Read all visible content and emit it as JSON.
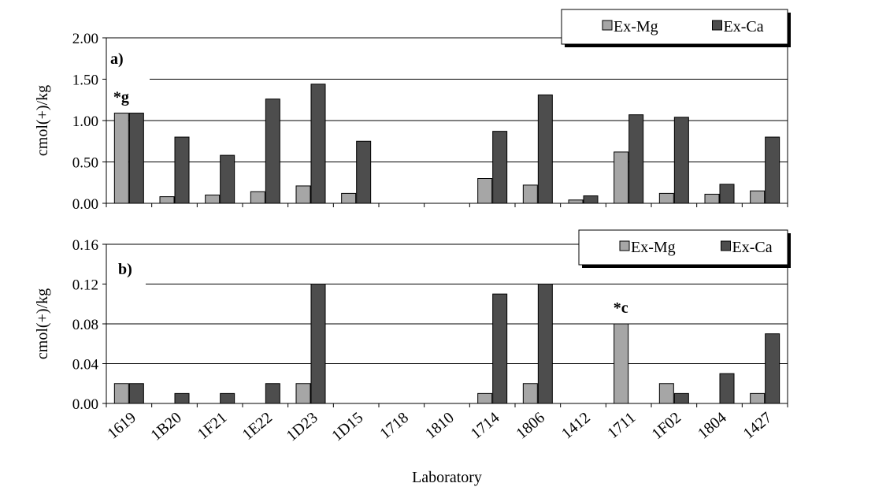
{
  "chart_data": [
    {
      "type": "bar",
      "panel_label": "a)",
      "ylabel": "cmol(+)/kg",
      "ylim": [
        0,
        2.0
      ],
      "yticks": [
        "0.00",
        "0.50",
        "1.00",
        "1.50",
        "2.00"
      ],
      "ytick_values": [
        0,
        0.5,
        1.0,
        1.5,
        2.0
      ],
      "grid": true,
      "legend": "top-right",
      "categories": [
        "1619",
        "1B20",
        "1F21",
        "1E22",
        "1D23",
        "1D15",
        "1718",
        "1810",
        "1714",
        "1806",
        "1412",
        "1711",
        "1F02",
        "1804",
        "1427"
      ],
      "series": [
        {
          "name": "Ex-Mg",
          "color": "#a6a6a6",
          "values": [
            1.09,
            0.08,
            0.1,
            0.14,
            0.21,
            0.12,
            null,
            null,
            0.3,
            0.22,
            0.04,
            0.62,
            0.12,
            0.11,
            0.15
          ]
        },
        {
          "name": "Ex-Ca",
          "color": "#4d4d4d",
          "values": [
            1.09,
            0.8,
            0.58,
            1.26,
            1.44,
            0.75,
            null,
            null,
            0.87,
            1.31,
            0.09,
            1.07,
            1.04,
            0.23,
            0.8
          ]
        }
      ],
      "annotations": [
        {
          "text": "*g",
          "category_index": 0
        }
      ]
    },
    {
      "type": "bar",
      "panel_label": "b)",
      "ylabel": "cmol(+)/kg",
      "xlabel": "Laboratory",
      "ylim": [
        0,
        0.16
      ],
      "yticks": [
        "0.00",
        "0.04",
        "0.08",
        "0.12",
        "0.16"
      ],
      "ytick_values": [
        0,
        0.04,
        0.08,
        0.12,
        0.16
      ],
      "grid": true,
      "legend": "top-right",
      "categories": [
        "1619",
        "1B20",
        "1F21",
        "1E22",
        "1D23",
        "1D15",
        "1718",
        "1810",
        "1714",
        "1806",
        "1412",
        "1711",
        "1F02",
        "1804",
        "1427"
      ],
      "series": [
        {
          "name": "Ex-Mg",
          "color": "#a6a6a6",
          "values": [
            0.02,
            null,
            null,
            null,
            0.02,
            null,
            null,
            null,
            0.01,
            0.02,
            null,
            0.08,
            0.02,
            null,
            0.01
          ]
        },
        {
          "name": "Ex-Ca",
          "color": "#4d4d4d",
          "values": [
            0.02,
            0.01,
            0.01,
            0.02,
            0.12,
            null,
            null,
            null,
            0.11,
            0.12,
            null,
            null,
            0.01,
            0.03,
            0.07
          ]
        }
      ],
      "annotations": [
        {
          "text": "*c",
          "category_index": 11
        }
      ]
    }
  ]
}
